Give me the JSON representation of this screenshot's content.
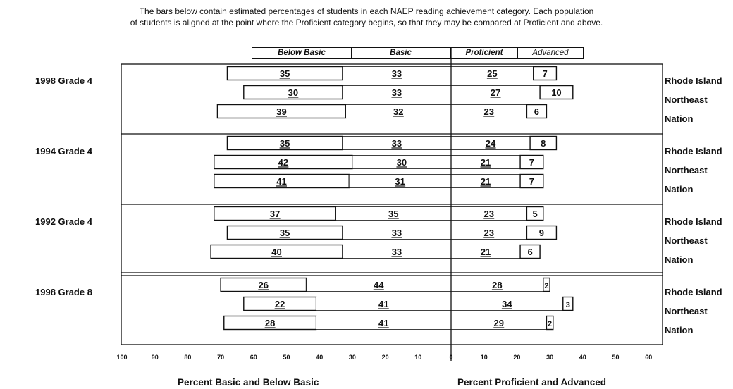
{
  "captions": {
    "line1": "The bars below contain estimated percentages of students in each NAEP reading achievement category.  Each population",
    "line2": "of students is aligned at the point where the Proficient category begins, so that they may be compared at Proficient and above."
  },
  "legend": {
    "below_basic": "Below Basic",
    "basic": "Basic",
    "proficient": "Proficient",
    "advanced": "Advanced"
  },
  "axis": {
    "left_title": "Percent Basic and Below Basic",
    "right_title": "Percent Proficient and Advanced",
    "left_ticks": [
      "100",
      "90",
      "80",
      "70",
      "60",
      "50",
      "40",
      "30",
      "20",
      "10",
      "0"
    ],
    "right_ticks": [
      "10",
      "20",
      "30",
      "40",
      "50",
      "60"
    ]
  },
  "chart_data": {
    "type": "bar",
    "orientation": "horizontal-diverging",
    "categories_order": [
      "Below Basic",
      "Basic",
      "Proficient",
      "Advanced"
    ],
    "xlim_left": [
      100,
      0
    ],
    "xlim_right": [
      0,
      60
    ],
    "groups": [
      {
        "label": "1998 Grade 4",
        "rows": [
          {
            "name": "Rhode Island",
            "below_basic": 35,
            "basic": 33,
            "proficient": 25,
            "advanced": 7
          },
          {
            "name": "Northeast",
            "below_basic": 30,
            "basic": 33,
            "proficient": 27,
            "advanced": 10
          },
          {
            "name": "Nation",
            "below_basic": 39,
            "basic": 32,
            "proficient": 23,
            "advanced": 6
          }
        ]
      },
      {
        "label": "1994 Grade 4",
        "rows": [
          {
            "name": "Rhode Island",
            "below_basic": 35,
            "basic": 33,
            "proficient": 24,
            "advanced": 8
          },
          {
            "name": "Northeast",
            "below_basic": 42,
            "basic": 30,
            "proficient": 21,
            "advanced": 7
          },
          {
            "name": "Nation",
            "below_basic": 41,
            "basic": 31,
            "proficient": 21,
            "advanced": 7
          }
        ]
      },
      {
        "label": "1992 Grade 4",
        "rows": [
          {
            "name": "Rhode Island",
            "below_basic": 37,
            "basic": 35,
            "proficient": 23,
            "advanced": 5
          },
          {
            "name": "Northeast",
            "below_basic": 35,
            "basic": 33,
            "proficient": 23,
            "advanced": 9
          },
          {
            "name": "Nation",
            "below_basic": 40,
            "basic": 33,
            "proficient": 21,
            "advanced": 6
          }
        ]
      },
      {
        "label": "1998 Grade 8",
        "rows": [
          {
            "name": "Rhode Island",
            "below_basic": 26,
            "basic": 44,
            "proficient": 28,
            "advanced": 2
          },
          {
            "name": "Northeast",
            "below_basic": 22,
            "basic": 41,
            "proficient": 34,
            "advanced": 3
          },
          {
            "name": "Nation",
            "below_basic": 28,
            "basic": 41,
            "proficient": 29,
            "advanced": 2
          }
        ]
      }
    ]
  }
}
